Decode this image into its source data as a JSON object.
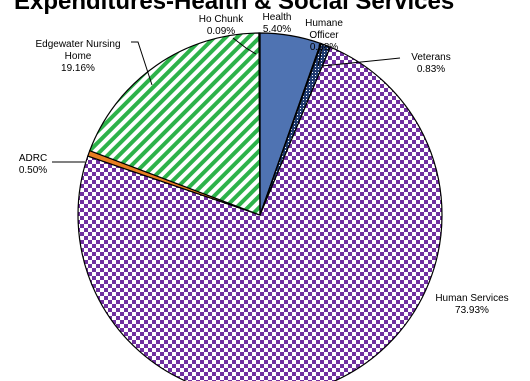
{
  "chart_data": {
    "type": "pie",
    "title": "Expenditures-Health & Social Services",
    "slices": [
      {
        "name": "Health",
        "value": 5.4,
        "value_label": "5.40%",
        "color": "#4f73b2",
        "pattern": "solid"
      },
      {
        "name": "Humane Officer",
        "value": 0.08,
        "value_label": "0.08%",
        "color": "#1f3f7a",
        "pattern": "solid"
      },
      {
        "name": "Veterans",
        "value": 0.83,
        "value_label": "0.83%",
        "color": "#1f3a70",
        "pattern": "dots"
      },
      {
        "name": "Human Services",
        "value": 73.93,
        "value_label": "73.93%",
        "color": "#7030a0",
        "pattern": "checker"
      },
      {
        "name": "ADRC",
        "value": 0.5,
        "value_label": "0.50%",
        "color": "#e87d22",
        "pattern": "solid"
      },
      {
        "name": "Edgewater Nursing Home",
        "value": 19.16,
        "value_label": "19.16%",
        "color": "#2db24a",
        "pattern": "stripes"
      },
      {
        "name": "Ho Chunk",
        "value": 0.09,
        "value_label": "0.09%",
        "color": "#9bbb59",
        "pattern": "solid"
      }
    ]
  }
}
